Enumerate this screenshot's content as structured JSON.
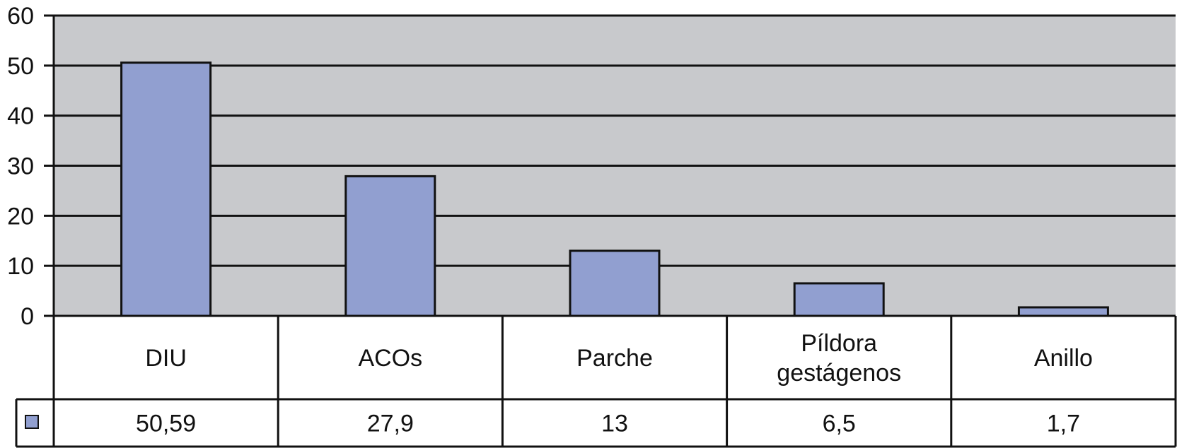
{
  "chart_data": {
    "type": "bar",
    "categories": [
      "DIU",
      "ACOs",
      "Parche",
      "Píldora gestágenos",
      "Anillo"
    ],
    "category_lines": [
      [
        "DIU"
      ],
      [
        "ACOs"
      ],
      [
        "Parche"
      ],
      [
        "Píldora",
        "gestágenos"
      ],
      [
        "Anillo"
      ]
    ],
    "values": [
      50.59,
      27.9,
      13,
      6.5,
      1.7
    ],
    "value_labels": [
      "50,59",
      "27,9",
      "13",
      "6,5",
      "1,7"
    ],
    "ylim": [
      0,
      60
    ],
    "yticks": [
      0,
      10,
      20,
      30,
      40,
      50,
      60
    ],
    "grid": true,
    "data_table": true,
    "colors": {
      "bar_fill": "#919fd0",
      "plot_background": "#c8c9cc",
      "line": "#111111"
    }
  }
}
